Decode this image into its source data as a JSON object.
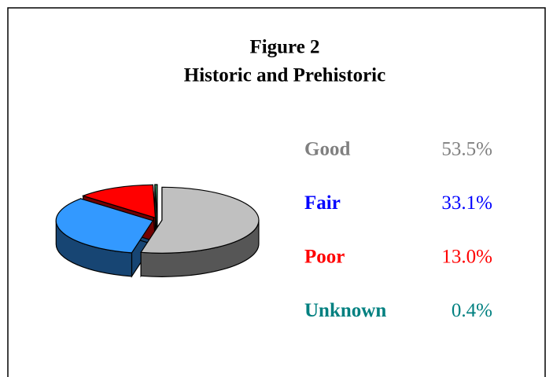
{
  "chart_data": {
    "type": "pie",
    "title": "Figure 2",
    "subtitle": "Historic and Prehistoric",
    "categories": [
      "Good",
      "Fair",
      "Poor",
      "Unknown"
    ],
    "values": [
      53.5,
      33.1,
      13.0,
      0.4
    ],
    "value_labels": [
      "53.5%",
      "33.1%",
      "13.0%",
      "0.4%"
    ],
    "colors": [
      "#c0c0c0",
      "#3399ff",
      "#ff0000",
      "#339966"
    ],
    "label_colors": [
      "#808080",
      "#0000ff",
      "#ff0000",
      "#008080"
    ],
    "legend": "right"
  }
}
